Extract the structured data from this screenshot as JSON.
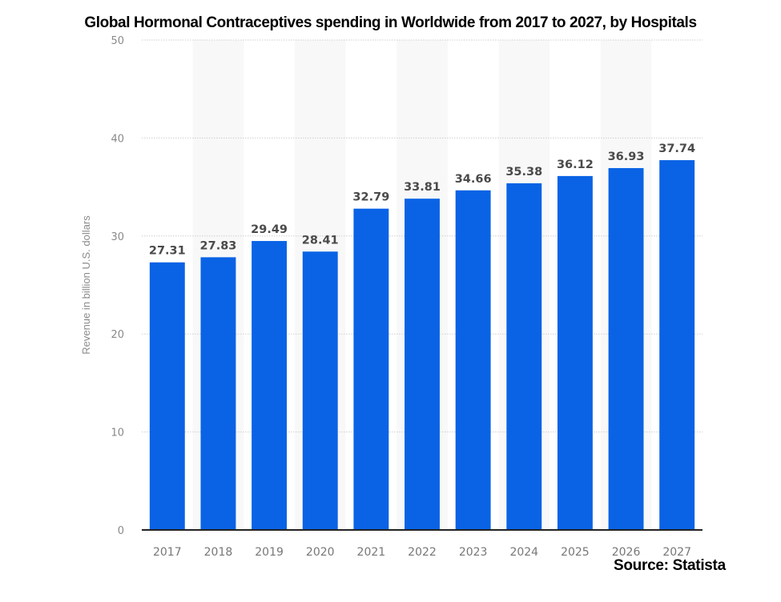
{
  "chart_data": {
    "type": "bar",
    "title": "Global Hormonal Contraceptives spending in Worldwide from 2017 to 2027, by Hospitals",
    "xlabel": "",
    "ylabel": "Revenue in billion U.S. dollars",
    "categories": [
      "2017",
      "2018",
      "2019",
      "2020",
      "2021",
      "2022",
      "2023",
      "2024",
      "2025",
      "2026",
      "2027"
    ],
    "values": [
      27.31,
      27.83,
      29.49,
      28.41,
      32.79,
      33.81,
      34.66,
      35.38,
      36.12,
      36.93,
      37.74
    ],
    "data_labels": [
      "27.31",
      "27.83",
      "29.49",
      "28.41",
      "32.79",
      "33.81",
      "34.66",
      "35.38",
      "36.12",
      "36.93",
      "37.74"
    ],
    "ylim": [
      0,
      50
    ],
    "yticks": [
      0,
      10,
      20,
      30,
      40,
      50
    ],
    "ytick_labels": [
      "0",
      "10",
      "20",
      "30",
      "40",
      "50"
    ],
    "grid": true,
    "legend": "none",
    "bar_color": "#0a63e5",
    "source": "Source: Statista"
  }
}
